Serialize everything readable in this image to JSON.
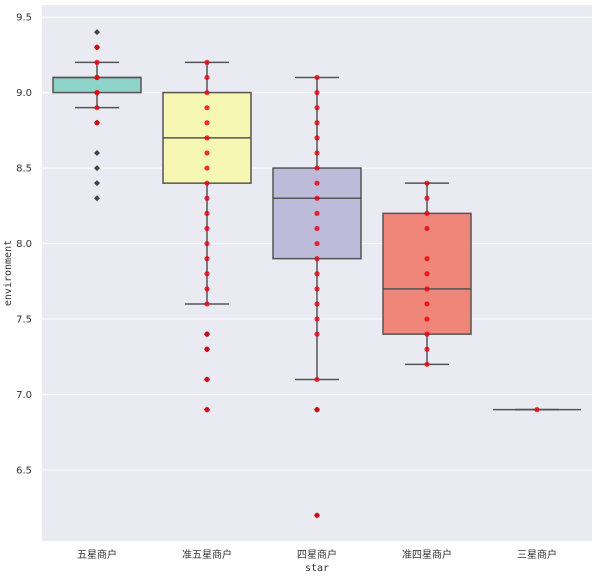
{
  "chart_data": {
    "type": "box",
    "xlabel": "star",
    "ylabel": "environment",
    "ylim": [
      6.03,
      9.58
    ],
    "yticks": [
      "6.5",
      "7.0",
      "7.5",
      "8.0",
      "8.5",
      "9.0",
      "9.5"
    ],
    "grid": true,
    "colors": {
      "background": "#eaeaf2",
      "grid": "#ffffff",
      "box_edge": "#555555",
      "points": "#e8000b",
      "outliers": "#444444"
    },
    "categories": [
      "五星商户",
      "准五星商户",
      "四星商户",
      "准四星商户",
      "三星商户"
    ],
    "boxes": [
      {
        "name": "五星商户",
        "color": "#8dd3c7",
        "min": 8.9,
        "q1": 9.0,
        "median": 9.1,
        "q3": 9.1,
        "max": 9.2,
        "outliers": [
          9.4,
          9.3,
          8.8,
          8.6,
          8.5,
          8.4,
          8.3
        ],
        "points": [
          9.3,
          9.2,
          9.1,
          9.0,
          8.9,
          8.8,
          9.1,
          9.0
        ]
      },
      {
        "name": "准五星商户",
        "color": "#f7f7b4",
        "min": 7.6,
        "q1": 8.4,
        "median": 8.7,
        "q3": 9.0,
        "max": 9.2,
        "outliers": [
          7.4,
          7.3,
          7.1,
          6.9
        ],
        "points": [
          9.2,
          9.1,
          9.0,
          8.9,
          8.8,
          8.7,
          8.6,
          8.5,
          8.4,
          8.3,
          8.2,
          8.1,
          8.0,
          7.9,
          7.8,
          7.7,
          7.6,
          7.4,
          7.3,
          7.1,
          6.9
        ]
      },
      {
        "name": "四星商户",
        "color": "#bebad9",
        "min": 7.1,
        "q1": 7.9,
        "median": 8.3,
        "q3": 8.5,
        "max": 9.1,
        "outliers": [
          6.9,
          6.2
        ],
        "points": [
          9.1,
          9.0,
          8.9,
          8.8,
          8.7,
          8.6,
          8.5,
          8.4,
          8.3,
          8.2,
          8.1,
          8.0,
          7.9,
          7.8,
          7.7,
          7.6,
          7.5,
          7.4,
          7.1,
          6.9,
          6.2
        ]
      },
      {
        "name": "准四星商户",
        "color": "#f0857a",
        "min": 7.2,
        "q1": 7.4,
        "median": 7.7,
        "q3": 8.2,
        "max": 8.4,
        "outliers": [],
        "points": [
          8.4,
          8.3,
          8.2,
          8.1,
          7.9,
          7.8,
          7.7,
          7.6,
          7.5,
          7.4,
          7.3,
          7.2
        ]
      },
      {
        "name": "三星商户",
        "color": "#b3b3b3",
        "min": 6.9,
        "q1": 6.9,
        "median": 6.9,
        "q3": 6.9,
        "max": 6.9,
        "outliers": [],
        "points": [
          6.9
        ]
      }
    ]
  }
}
